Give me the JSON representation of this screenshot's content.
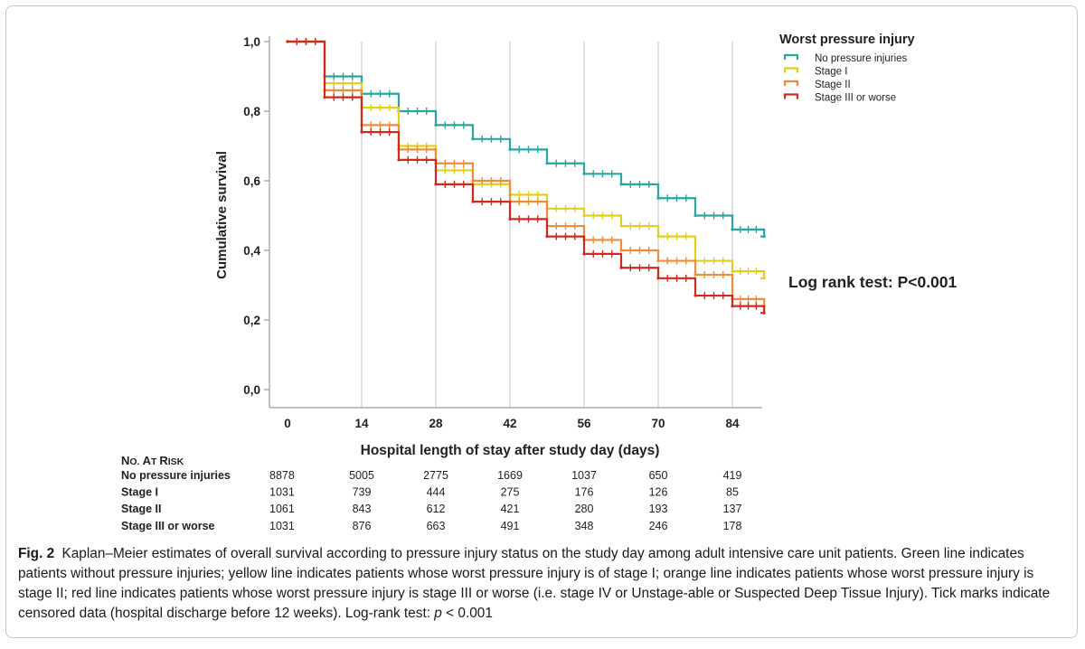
{
  "chart_data": {
    "type": "line",
    "step": true,
    "title": "",
    "xlabel": "Hospital length of stay after study day (days)",
    "ylabel": "Cumulative survival",
    "xlim": [
      0,
      90
    ],
    "ylim": [
      0,
      1
    ],
    "x_ticks": [
      0,
      14,
      28,
      42,
      56,
      70,
      84
    ],
    "x_tick_labels": [
      "0",
      "14",
      "28",
      "42",
      "56",
      "70",
      "84"
    ],
    "y_ticks": [
      0,
      0.2,
      0.4,
      0.6,
      0.8,
      1.0
    ],
    "y_tick_labels": [
      "0,0",
      "0,2",
      "0,4",
      "0,6",
      "0,8",
      "1,0"
    ],
    "grid": "vertical",
    "legend": {
      "title": "Worst pressure injury",
      "placement": "top-right"
    },
    "annotation": "Log rank test: P<0.001",
    "series": [
      {
        "name": "No pressure injuries",
        "color": "#2aa5a0",
        "x": [
          0,
          7,
          14,
          21,
          28,
          35,
          42,
          49,
          56,
          63,
          70,
          77,
          84,
          90
        ],
        "y": [
          1.0,
          0.9,
          0.85,
          0.8,
          0.76,
          0.72,
          0.69,
          0.65,
          0.62,
          0.59,
          0.55,
          0.5,
          0.46,
          0.44
        ]
      },
      {
        "name": "Stage I",
        "color": "#e0d020",
        "x": [
          0,
          7,
          14,
          21,
          28,
          35,
          42,
          49,
          56,
          63,
          70,
          77,
          84,
          90
        ],
        "y": [
          1.0,
          0.88,
          0.81,
          0.7,
          0.63,
          0.59,
          0.56,
          0.52,
          0.5,
          0.47,
          0.44,
          0.37,
          0.34,
          0.32
        ]
      },
      {
        "name": "Stage II",
        "color": "#f08c3c",
        "x": [
          0,
          7,
          14,
          21,
          28,
          35,
          42,
          49,
          56,
          63,
          70,
          77,
          84,
          90
        ],
        "y": [
          1.0,
          0.86,
          0.76,
          0.69,
          0.65,
          0.6,
          0.54,
          0.47,
          0.43,
          0.4,
          0.37,
          0.33,
          0.26,
          0.24
        ]
      },
      {
        "name": "Stage III or worse",
        "color": "#d02a20",
        "x": [
          0,
          7,
          14,
          21,
          28,
          35,
          42,
          49,
          56,
          63,
          70,
          77,
          84,
          90
        ],
        "y": [
          1.0,
          0.84,
          0.74,
          0.66,
          0.59,
          0.54,
          0.49,
          0.44,
          0.39,
          0.35,
          0.32,
          0.27,
          0.24,
          0.22
        ]
      }
    ]
  },
  "risk_table": {
    "header_big1": "N",
    "header_small1": "O.",
    "header_space": " ",
    "header_big2": "A",
    "header_small2": "T ",
    "header_big3": "R",
    "header_small3": "ISK",
    "rows": [
      {
        "label": "No pressure injuries",
        "values": [
          "8878",
          "5005",
          "2775",
          "1669",
          "1037",
          "650",
          "419"
        ]
      },
      {
        "label": "Stage I",
        "values": [
          "1031",
          "739",
          "444",
          "275",
          "176",
          "126",
          "85"
        ]
      },
      {
        "label": "Stage II",
        "values": [
          "1061",
          "843",
          "612",
          "421",
          "280",
          "193",
          "137"
        ]
      },
      {
        "label": "Stage III  or worse",
        "values": [
          "1031",
          "876",
          "663",
          "491",
          "348",
          "246",
          "178"
        ]
      }
    ]
  },
  "caption": {
    "label": "Fig. 2",
    "text_main": "Kaplan–Meier estimates of overall survival according to pressure injury status on the study day among adult intensive care unit patients. Green line indicates patients without pressure injuries; yellow line indicates patients whose worst pressure injury is of stage I; orange line indicates patients whose worst pressure injury is stage II; red line indicates patients whose worst pressure injury is stage III or worse (i.e. stage IV or Unstage-able or Suspected Deep Tissue Injury). Tick marks indicate censored data (hospital discharge before 12 weeks). Log-rank test: ",
    "p_symbol": "p",
    "p_rest": " < 0.001"
  }
}
